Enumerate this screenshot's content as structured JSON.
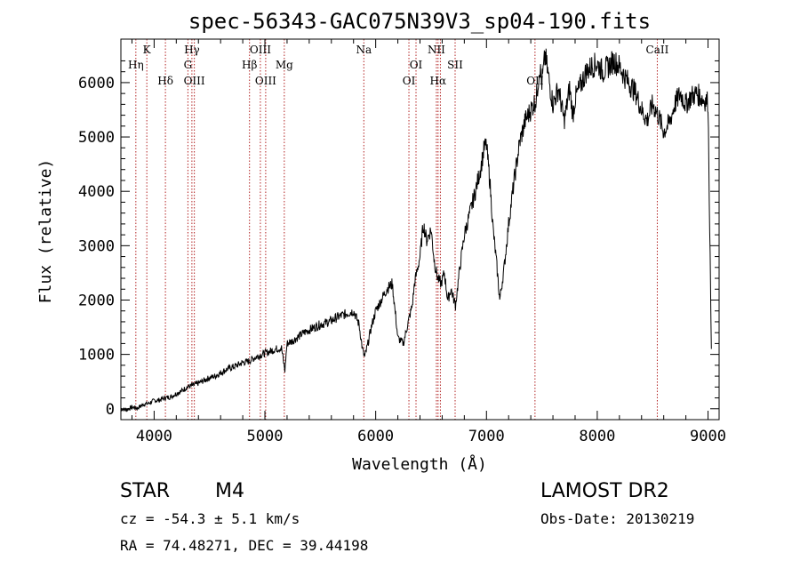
{
  "chart_data": {
    "type": "line",
    "title": "spec-56343-GAC075N39V3_sp04-190.fits",
    "xlabel": "Wavelength (Å)",
    "ylabel": "Flux (relative)",
    "xlim": [
      3700,
      9100
    ],
    "ylim": [
      -200,
      6800
    ],
    "x_ticks": [
      4000,
      5000,
      6000,
      7000,
      8000,
      9000
    ],
    "x_tick_labels": [
      "4000",
      "5000",
      "6000",
      "7000",
      "8000",
      "9000"
    ],
    "y_ticks": [
      0,
      1000,
      2000,
      3000,
      4000,
      5000,
      6000
    ],
    "y_tick_labels": [
      "0",
      "1000",
      "2000",
      "3000",
      "4000",
      "5000",
      "6000"
    ],
    "grid": false,
    "line_color": "#000000",
    "marker_line_color": "#b22222",
    "series": [
      {
        "x": [
          3700,
          3750,
          3800,
          3850,
          3900,
          3950,
          4000,
          4050,
          4100,
          4150,
          4200,
          4250,
          4300,
          4350,
          4400,
          4450,
          4500,
          4550,
          4600,
          4650,
          4700,
          4750,
          4800,
          4850,
          4900,
          4950,
          5000,
          5050,
          5100,
          5150,
          5180,
          5200,
          5250,
          5300,
          5350,
          5400,
          5450,
          5500,
          5550,
          5600,
          5650,
          5700,
          5750,
          5800,
          5850,
          5880,
          5900,
          5930,
          5960,
          6000,
          6050,
          6100,
          6150,
          6180,
          6200,
          6250,
          6300,
          6330,
          6350,
          6400,
          6430,
          6460,
          6500,
          6530,
          6560,
          6590,
          6620,
          6650,
          6680,
          6720,
          6760,
          6800,
          6850,
          6900,
          6950,
          6980,
          7000,
          7030,
          7060,
          7090,
          7120,
          7160,
          7200,
          7250,
          7300,
          7350,
          7400,
          7450,
          7480,
          7500,
          7530,
          7560,
          7600,
          7650,
          7700,
          7720,
          7750,
          7780,
          7800,
          7850,
          7900,
          7950,
          8000,
          8050,
          8100,
          8150,
          8200,
          8250,
          8300,
          8350,
          8400,
          8450,
          8500,
          8550,
          8600,
          8650,
          8700,
          8750,
          8800,
          8850,
          8900,
          8950,
          9000,
          9030
        ],
        "y": [
          0,
          -20,
          30,
          10,
          80,
          100,
          150,
          160,
          200,
          220,
          280,
          330,
          400,
          430,
          470,
          520,
          570,
          600,
          660,
          720,
          760,
          800,
          850,
          870,
          930,
          980,
          1020,
          1060,
          1100,
          1120,
          700,
          1200,
          1250,
          1320,
          1400,
          1450,
          1500,
          1550,
          1580,
          1620,
          1680,
          1720,
          1760,
          1800,
          1550,
          1100,
          950,
          1200,
          1500,
          1800,
          2000,
          2200,
          2300,
          1700,
          1300,
          1200,
          1650,
          1900,
          2300,
          2800,
          3400,
          3100,
          3300,
          2700,
          2400,
          2300,
          2500,
          2000,
          2200,
          1900,
          2600,
          3200,
          3600,
          4000,
          4450,
          4800,
          4850,
          4200,
          3300,
          2700,
          2000,
          2600,
          3400,
          4200,
          4900,
          5300,
          5500,
          5700,
          6300,
          6000,
          6500,
          6100,
          5600,
          5900,
          5300,
          5500,
          5900,
          5400,
          5700,
          5950,
          6200,
          6300,
          6350,
          6200,
          6300,
          6400,
          6300,
          6100,
          5950,
          5800,
          5500,
          5300,
          5600,
          5400,
          5100,
          5250,
          5600,
          5800,
          5600,
          5750,
          5800,
          5700,
          5650,
          1100
        ]
      }
    ],
    "lines": [
      {
        "x": 3835,
        "labels": [
          "Hη"
        ],
        "rows": [
          1
        ]
      },
      {
        "x": 3934,
        "labels": [
          "K"
        ],
        "rows": [
          0
        ]
      },
      {
        "x": 4102,
        "labels": [
          "Hδ"
        ],
        "rows": [
          2
        ]
      },
      {
        "x": 4305,
        "labels": [
          "G"
        ],
        "rows": [
          1
        ]
      },
      {
        "x": 4341,
        "labels": [
          "Hγ"
        ],
        "rows": [
          0
        ]
      },
      {
        "x": 4363,
        "labels": [
          "OIII"
        ],
        "rows": [
          2
        ]
      },
      {
        "x": 4861,
        "labels": [
          "Hβ"
        ],
        "rows": [
          1
        ]
      },
      {
        "x": 4959,
        "labels": [
          "OIII"
        ],
        "rows": [
          0
        ]
      },
      {
        "x": 5007,
        "labels": [
          "OIII"
        ],
        "rows": [
          2
        ]
      },
      {
        "x": 5175,
        "labels": [
          "Mg"
        ],
        "rows": [
          1
        ]
      },
      {
        "x": 5893,
        "labels": [
          "Na"
        ],
        "rows": [
          0
        ]
      },
      {
        "x": 6300,
        "labels": [
          "OI"
        ],
        "rows": [
          2
        ]
      },
      {
        "x": 6364,
        "labels": [
          "OI"
        ],
        "rows": [
          1
        ]
      },
      {
        "x": 6548,
        "labels": [
          "NII"
        ],
        "rows": [
          0
        ]
      },
      {
        "x": 6563,
        "labels": [
          "Hα"
        ],
        "rows": [
          2
        ]
      },
      {
        "x": 6584,
        "labels": [],
        "rows": []
      },
      {
        "x": 6717,
        "labels": [
          "SII"
        ],
        "rows": [
          1
        ]
      },
      {
        "x": 7438,
        "labels": [
          "OII"
        ],
        "rows": [
          2
        ]
      },
      {
        "x": 8542,
        "labels": [
          "CaII"
        ],
        "rows": [
          0
        ]
      }
    ]
  },
  "info": {
    "class_label": "STAR",
    "subclass": "M4",
    "survey": "LAMOST DR2",
    "cz": "cz = -54.3 ± 5.1 km/s",
    "obs_date": "Obs-Date: 20130219",
    "coords": "RA =  74.48271, DEC =  39.44198"
  }
}
